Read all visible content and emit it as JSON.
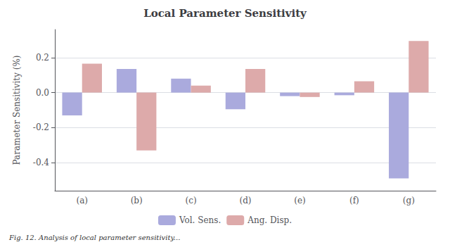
{
  "chart_data": {
    "type": "bar",
    "title": "Local Parameter Sensitivity",
    "ylabel": "Parameter Sensitivity (%)",
    "categories": [
      "(a)",
      "(b)",
      "(c)",
      "(d)",
      "(e)",
      "(f)",
      "(g)"
    ],
    "series": [
      {
        "name": "Vol. Sens.",
        "color": "#aaaadd",
        "values": [
          -0.13,
          0.135,
          0.08,
          -0.095,
          -0.02,
          -0.015,
          -0.49
        ]
      },
      {
        "name": "Ang. Disp.",
        "color": "#ddaaaa",
        "values": [
          0.165,
          -0.33,
          0.04,
          0.135,
          -0.025,
          0.065,
          0.295
        ]
      }
    ],
    "ylim": [
      -0.56,
      0.36
    ],
    "yticks": [
      -0.4,
      -0.2,
      {
        "value": 0,
        "label": "0.0"
      },
      0.2
    ],
    "grid": true,
    "legend": "bottom",
    "caption": "Fig. 12. Analysis of local parameter sensitivity..."
  }
}
